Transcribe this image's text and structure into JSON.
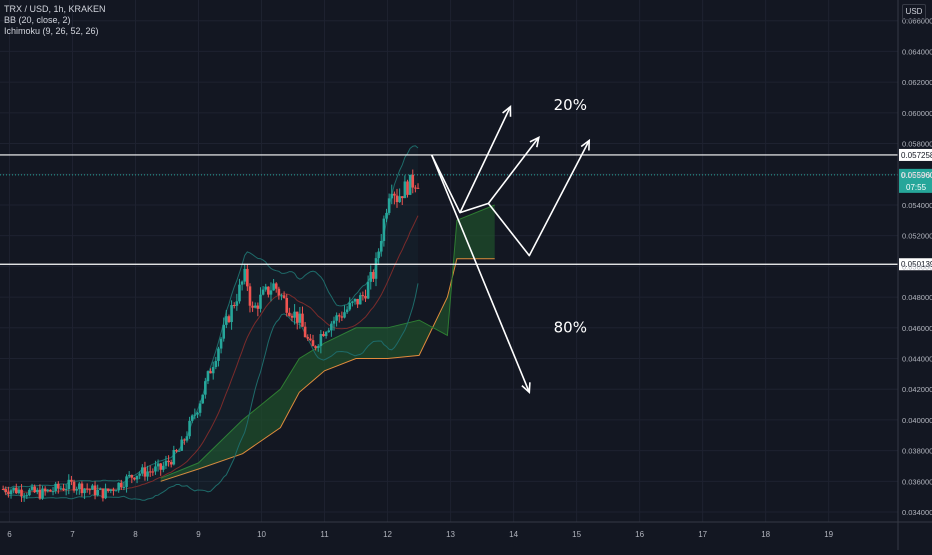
{
  "header": {
    "symbol": "TRX / USD, 1h, KRAKEN",
    "indicator_bb": "BB (20, close, 2)",
    "indicator_ichimoku": "Ichimoku (9, 26, 52, 26)",
    "currency": "USD"
  },
  "colors": {
    "background": "#131722",
    "grid": "#1e2230",
    "text": "#b2b5be",
    "up": "#26a69a",
    "down": "#ef5350",
    "bb_band": "#1e6b6a",
    "bb_basis": "#7a2b2b",
    "cloud_green": "#1f4e2b",
    "cloud_line_orange": "#e08a3c",
    "current_price": "#26a69a",
    "annotation": "#ffffff"
  },
  "chart_data": {
    "type": "candlestick",
    "y_axis": {
      "ylim": [
        0.03335,
        0.06735
      ],
      "ticks": [
        "0.066000",
        "0.064000",
        "0.062000",
        "0.060000",
        "0.058000",
        "0.056000",
        "0.054000",
        "0.052000",
        "0.050000",
        "0.048000",
        "0.046000",
        "0.044000",
        "0.042000",
        "0.040000",
        "0.038000",
        "0.036000",
        "0.034000"
      ]
    },
    "x_axis": {
      "xlim": [
        5.85,
        20.1
      ],
      "ticks": [
        "6",
        "7",
        "8",
        "9",
        "10",
        "11",
        "12",
        "13",
        "14",
        "15",
        "16",
        "17",
        "18",
        "19"
      ]
    },
    "price_anchors": [
      [
        6.0,
        0.0355
      ],
      [
        6.5,
        0.0352
      ],
      [
        7.0,
        0.0358
      ],
      [
        7.5,
        0.0352
      ],
      [
        8.0,
        0.0365
      ],
      [
        8.4,
        0.0368
      ],
      [
        8.7,
        0.038
      ],
      [
        9.0,
        0.041
      ],
      [
        9.25,
        0.044
      ],
      [
        9.5,
        0.047
      ],
      [
        9.75,
        0.0495
      ],
      [
        9.85,
        0.047
      ],
      [
        10.0,
        0.048
      ],
      [
        10.2,
        0.0488
      ],
      [
        10.4,
        0.0475
      ],
      [
        10.6,
        0.0465
      ],
      [
        10.8,
        0.0445
      ],
      [
        11.0,
        0.046
      ],
      [
        11.3,
        0.047
      ],
      [
        11.6,
        0.048
      ],
      [
        11.8,
        0.0497
      ],
      [
        11.95,
        0.0532
      ],
      [
        12.05,
        0.0555
      ],
      [
        12.15,
        0.0545
      ],
      [
        12.3,
        0.0552
      ],
      [
        12.45,
        0.0556
      ]
    ],
    "ichimoku_cloud": [
      [
        8.4,
        0.036,
        0.0362
      ],
      [
        9.0,
        0.0368,
        0.0372
      ],
      [
        9.7,
        0.0378,
        0.04
      ],
      [
        10.3,
        0.0395,
        0.042
      ],
      [
        10.6,
        0.0418,
        0.044
      ],
      [
        11.0,
        0.0432,
        0.045
      ],
      [
        11.5,
        0.044,
        0.046
      ],
      [
        12.0,
        0.044,
        0.046
      ],
      [
        12.5,
        0.0442,
        0.0465
      ],
      [
        12.95,
        0.048,
        0.0455
      ],
      [
        13.1,
        0.0505,
        0.053
      ],
      [
        13.7,
        0.0505,
        0.054
      ]
    ],
    "horizontal_levels": [
      {
        "price": 0.057258,
        "label": "0.057258",
        "color": "#ffffff"
      },
      {
        "price": 0.050139,
        "label": "0.050139",
        "color": "#ffffff"
      }
    ],
    "current_price": {
      "label": "0.055960",
      "countdown": "07:55",
      "price": 0.05596
    },
    "projections": [
      {
        "name": "up-path",
        "points": [
          [
            12.7,
            0.05725
          ],
          [
            13.15,
            0.0535
          ],
          [
            13.95,
            0.0604
          ]
        ]
      },
      {
        "name": "up-path-2",
        "points": [
          [
            13.15,
            0.0535
          ],
          [
            13.6,
            0.0541
          ],
          [
            14.4,
            0.0584
          ]
        ]
      },
      {
        "name": "up-path-3",
        "points": [
          [
            13.6,
            0.0541
          ],
          [
            14.25,
            0.0507
          ],
          [
            15.2,
            0.0582
          ]
        ]
      },
      {
        "name": "down-path",
        "points": [
          [
            12.7,
            0.05725
          ],
          [
            14.25,
            0.0418
          ]
        ]
      }
    ],
    "annotations": [
      {
        "text": "20%",
        "x": 14.9,
        "y": 0.0602
      },
      {
        "text": "80%",
        "x": 14.9,
        "y": 0.0457
      }
    ]
  }
}
